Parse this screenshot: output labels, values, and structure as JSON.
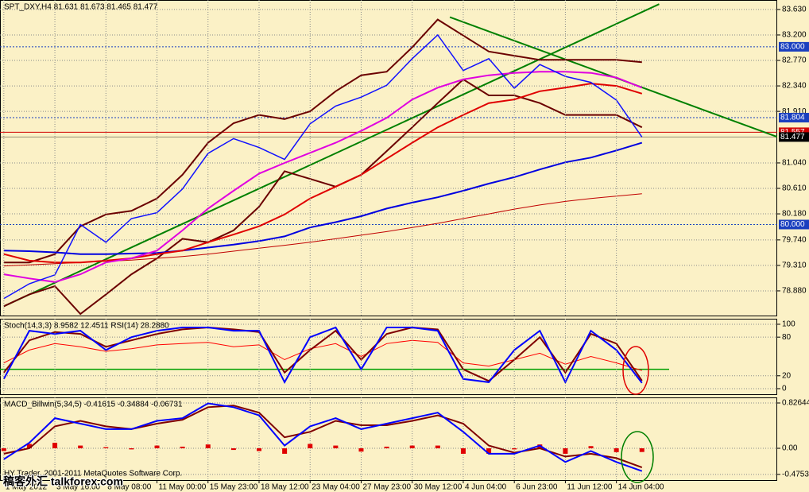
{
  "chart_data": [
    {
      "type": "line",
      "title": "SPT_DXY,H4  81.631 81.673 81.465 81.477",
      "xlim": [
        -0.6,
        121.2
      ],
      "ylim": [
        78.45,
        83.79
      ],
      "grid": true,
      "yticks": [
        {
          "value": 83.63,
          "label": "83.630"
        },
        {
          "value": 83.2,
          "label": "83.200"
        },
        {
          "value": 82.77,
          "label": "82.770"
        },
        {
          "value": 82.34,
          "label": "82.340"
        },
        {
          "value": 81.91,
          "label": "81.910"
        },
        {
          "value": 81.04,
          "label": "81.040"
        },
        {
          "value": 80.61,
          "label": "80.610"
        },
        {
          "value": 80.18,
          "label": "80.180"
        },
        {
          "value": 79.74,
          "label": "79.740"
        },
        {
          "value": 79.31,
          "label": "79.310"
        },
        {
          "value": 78.88,
          "label": "78.880"
        }
      ],
      "x": [
        0,
        4,
        8,
        12,
        16,
        20,
        24,
        28,
        32,
        36,
        40,
        44,
        48,
        52,
        56,
        60,
        64,
        68,
        72,
        76,
        80,
        84,
        88,
        92,
        96,
        100
      ],
      "series": [
        {
          "type": "line",
          "color": "#6b0000",
          "width": 2,
          "values": [
            79.36,
            79.36,
            79.5,
            79.97,
            80.17,
            80.23,
            80.44,
            80.84,
            81.38,
            81.71,
            81.85,
            81.78,
            81.91,
            82.25,
            82.52,
            82.58,
            82.99,
            83.46,
            83.19,
            82.92,
            82.85,
            82.78,
            82.78,
            82.78,
            82.78,
            82.74
          ]
        },
        {
          "type": "line",
          "color": "#6b0000",
          "width": 2,
          "values": [
            78.62,
            78.82,
            78.96,
            78.49,
            78.82,
            79.16,
            79.43,
            79.76,
            79.7,
            79.9,
            80.3,
            80.9,
            80.77,
            80.64,
            80.84,
            81.24,
            81.64,
            82.05,
            82.45,
            82.18,
            82.18,
            82.05,
            81.85,
            81.85,
            81.85,
            81.64
          ]
        },
        {
          "type": "line",
          "color": "#c00000",
          "width": 1,
          "values": [
            79.3,
            79.32,
            79.34,
            79.36,
            79.38,
            79.4,
            79.43,
            79.46,
            79.5,
            79.55,
            79.6,
            79.65,
            79.7,
            79.76,
            79.82,
            79.88,
            79.95,
            80.02,
            80.1,
            80.18,
            80.26,
            80.33,
            80.39,
            80.44,
            80.48,
            80.52
          ]
        },
        {
          "type": "line",
          "color": "#0000e0",
          "width": 2,
          "values": [
            79.56,
            79.55,
            79.53,
            79.5,
            79.5,
            79.51,
            79.52,
            79.56,
            79.61,
            79.66,
            79.72,
            79.8,
            79.95,
            80.04,
            80.14,
            80.27,
            80.37,
            80.46,
            80.57,
            80.69,
            80.8,
            80.93,
            81.05,
            81.13,
            81.25,
            81.38
          ]
        },
        {
          "type": "line",
          "color": "#e00000",
          "width": 2,
          "values": [
            79.5,
            79.39,
            79.36,
            79.36,
            79.39,
            79.43,
            79.5,
            79.56,
            79.7,
            79.83,
            79.97,
            80.17,
            80.44,
            80.64,
            80.84,
            81.11,
            81.38,
            81.64,
            81.85,
            82.05,
            82.11,
            82.25,
            82.31,
            82.38,
            82.34,
            82.21
          ]
        },
        {
          "type": "line",
          "color": "#e000e0",
          "width": 2,
          "values": [
            79.16,
            79.09,
            79.03,
            79.16,
            79.36,
            79.43,
            79.56,
            79.9,
            80.27,
            80.57,
            80.86,
            81.04,
            81.21,
            81.38,
            81.58,
            81.8,
            82.11,
            82.31,
            82.45,
            82.52,
            82.56,
            82.58,
            82.58,
            82.56,
            82.48,
            82.31
          ]
        },
        {
          "type": "line",
          "color": "#1010ff",
          "width": 1.5,
          "values": [
            78.75,
            79.0,
            79.15,
            80.0,
            79.7,
            80.1,
            80.2,
            80.6,
            81.2,
            81.45,
            81.3,
            81.1,
            81.7,
            82.0,
            82.15,
            82.35,
            82.8,
            83.2,
            82.6,
            82.8,
            82.3,
            82.7,
            82.5,
            82.4,
            82.1,
            81.477
          ]
        }
      ],
      "trendlines": [
        {
          "color": "#008000",
          "x": [
            0,
            102.7
          ],
          "y": [
            78.62,
            83.72
          ]
        },
        {
          "color": "#008000",
          "x": [
            69.9,
            121.2
          ],
          "y": [
            83.5,
            81.48
          ]
        }
      ],
      "hlines": [
        {
          "value": 83.0,
          "label": "83.000",
          "color": "#1a3fbf",
          "dashed": true
        },
        {
          "value": 81.804,
          "label": "81.804",
          "color": "#1a3fbf",
          "dashed": true
        },
        {
          "value": 81.557,
          "label": "81.557",
          "color": "#d00000",
          "dashed": false
        },
        {
          "value": 81.477,
          "label": "81.477",
          "color": "#000000",
          "dashed": false
        },
        {
          "value": 80.0,
          "label": "80.000",
          "color": "#1a3fbf",
          "dashed": true
        }
      ]
    },
    {
      "type": "line",
      "title": "Stoch(14,3,3) 8.9582 12.4511  RSI(14) 28.2880",
      "xlim": [
        -0.6,
        121.2
      ],
      "ylim": [
        -9.9,
        108.6
      ],
      "grid": true,
      "yticks": [
        100,
        80,
        20,
        0
      ],
      "levels": [
        {
          "value": 30,
          "color": "#00a000"
        }
      ],
      "x": [
        0,
        4,
        8,
        12,
        16,
        20,
        24,
        28,
        32,
        36,
        40,
        44,
        48,
        52,
        56,
        60,
        64,
        68,
        72,
        76,
        80,
        84,
        88,
        92,
        96,
        100
      ],
      "series": [
        {
          "type": "line",
          "color": "#ff0000",
          "width": 1,
          "values": [
            40,
            60,
            70,
            65,
            58,
            62,
            68,
            70,
            72,
            65,
            68,
            45,
            62,
            70,
            50,
            70,
            75,
            72,
            40,
            35,
            45,
            55,
            38,
            50,
            40,
            28.288
          ]
        },
        {
          "type": "line",
          "color": "#800000",
          "width": 2,
          "values": [
            25,
            75,
            88,
            85,
            65,
            75,
            85,
            92,
            95,
            92,
            88,
            25,
            60,
            90,
            45,
            85,
            95,
            92,
            30,
            12,
            45,
            80,
            25,
            85,
            70,
            12.4511
          ]
        },
        {
          "type": "line",
          "color": "#0000ff",
          "width": 2,
          "values": [
            15,
            90,
            85,
            90,
            60,
            80,
            90,
            95,
            95,
            90,
            90,
            10,
            80,
            95,
            30,
            95,
            95,
            90,
            15,
            10,
            60,
            90,
            10,
            90,
            60,
            8.9582
          ]
        }
      ]
    },
    {
      "type": "line",
      "title": "MACD_Billwin(5,34,5) -0.41615 -0.34884 -0.06731",
      "xlim": [
        -0.6,
        121.2
      ],
      "ylim": [
        -0.594,
        0.928
      ],
      "grid": true,
      "yticks": [
        0.82644,
        {
          "value": 0,
          "label": "0.00"
        },
        -0.47532
      ],
      "xticks": [
        {
          "value": 0,
          "label": "1 May 2012"
        },
        {
          "value": 8,
          "label": "3 May 16:00"
        },
        {
          "value": 16,
          "label": "8 May 08:00"
        },
        {
          "value": 24,
          "label": "11 May 00:00"
        },
        {
          "value": 32,
          "label": "15 May 23:00"
        },
        {
          "value": 40,
          "label": "18 May 12:00"
        },
        {
          "value": 48,
          "label": "23 May 04:00"
        },
        {
          "value": 56,
          "label": "27 May 23:00"
        },
        {
          "value": 64,
          "label": "30 May 12:00"
        },
        {
          "value": 72,
          "label": "4 Jun 04:00"
        },
        {
          "value": 80,
          "label": "6 Jun 23:00"
        },
        {
          "value": 88,
          "label": "11 Jun 12:00"
        },
        {
          "value": 96,
          "label": "14 Jun 04:00"
        }
      ],
      "x": [
        0,
        4,
        8,
        12,
        16,
        20,
        24,
        28,
        32,
        36,
        40,
        44,
        48,
        52,
        56,
        60,
        64,
        68,
        72,
        76,
        80,
        84,
        88,
        92,
        96,
        100
      ],
      "series": [
        {
          "type": "bar",
          "color": "#e00000",
          "values": [
            -0.05,
            0.08,
            0.1,
            0.05,
            0.02,
            -0.02,
            0.05,
            0.03,
            0.07,
            -0.03,
            -0.05,
            -0.1,
            0.08,
            0.05,
            -0.06,
            0.03,
            0.05,
            0.05,
            -0.1,
            -0.1,
            -0.02,
            0.07,
            -0.1,
            0.04,
            -0.07,
            -0.06731
          ]
        },
        {
          "type": "line",
          "color": "#800000",
          "width": 2,
          "values": [
            -0.1,
            0.0,
            0.4,
            0.5,
            0.4,
            0.35,
            0.45,
            0.52,
            0.75,
            0.78,
            0.65,
            0.2,
            0.3,
            0.5,
            0.42,
            0.42,
            0.5,
            0.6,
            0.45,
            0.05,
            -0.08,
            0.0,
            -0.15,
            -0.1,
            -0.18,
            -0.34884
          ]
        },
        {
          "type": "line",
          "color": "#0000ff",
          "width": 2,
          "values": [
            -0.2,
            0.1,
            0.55,
            0.45,
            0.35,
            0.35,
            0.5,
            0.55,
            0.82,
            0.75,
            0.6,
            0.05,
            0.4,
            0.55,
            0.35,
            0.45,
            0.55,
            0.65,
            0.3,
            -0.1,
            -0.1,
            0.05,
            -0.25,
            -0.05,
            -0.25,
            -0.41615
          ]
        }
      ],
      "annotations": [
        "HY Trader, 2001-2011 MetaQuotes Software Corp.",
        "稿客外汇 talkforex.com"
      ]
    }
  ]
}
